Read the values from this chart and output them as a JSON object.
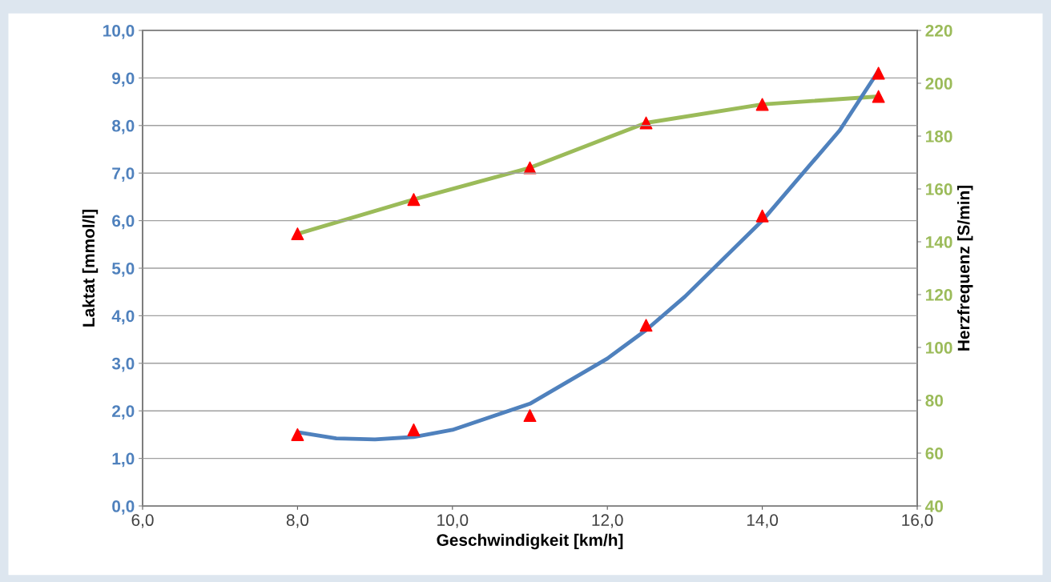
{
  "chart_data": {
    "type": "line",
    "xlabel": "Geschwindigkeit [km/h]",
    "ylabel": "Laktat [mmol/l]",
    "y2label": "Herzfrequenz [S/min]",
    "xlim": [
      6,
      16
    ],
    "xticks": [
      {
        "value": 6,
        "label": "6,0"
      },
      {
        "value": 8,
        "label": "8,0"
      },
      {
        "value": 10,
        "label": "10,0"
      },
      {
        "value": 12,
        "label": "12,0"
      },
      {
        "value": 14,
        "label": "14,0"
      },
      {
        "value": 16,
        "label": "16,0"
      }
    ],
    "ylim": [
      0,
      10
    ],
    "yticks": [
      {
        "value": 0,
        "label": "0,0"
      },
      {
        "value": 1,
        "label": "1,0"
      },
      {
        "value": 2,
        "label": "2,0"
      },
      {
        "value": 3,
        "label": "3,0"
      },
      {
        "value": 4,
        "label": "4,0"
      },
      {
        "value": 5,
        "label": "5,0"
      },
      {
        "value": 6,
        "label": "6,0"
      },
      {
        "value": 7,
        "label": "7,0"
      },
      {
        "value": 8,
        "label": "8,0"
      },
      {
        "value": 9,
        "label": "9,0"
      },
      {
        "value": 10,
        "label": "10,0"
      }
    ],
    "y2lim": [
      40,
      220
    ],
    "y2ticks": [
      40,
      60,
      80,
      100,
      120,
      140,
      160,
      180,
      200,
      220
    ],
    "grid": "y",
    "legend": false,
    "series": [
      {
        "axis": "y2",
        "color": "#9bbb59",
        "marker": "none",
        "x": [
          8.0,
          9.5,
          11.0,
          12.5,
          14.0,
          15.5
        ],
        "values": [
          143,
          156,
          168,
          185,
          192,
          195
        ]
      },
      {
        "axis": "y",
        "color": "#4f81bd",
        "marker": "none",
        "x": [
          8.0,
          8.5,
          9.0,
          9.5,
          10.0,
          11.0,
          12.0,
          12.5,
          13.0,
          14.0,
          15.0,
          15.5
        ],
        "values": [
          1.55,
          1.42,
          1.4,
          1.45,
          1.6,
          2.15,
          3.1,
          3.7,
          4.4,
          6.0,
          7.9,
          9.15
        ]
      },
      {
        "type": "scatter",
        "axis": "y2",
        "color": "#ff0000",
        "marker": "triangle",
        "x": [
          8.0,
          9.5,
          11.0,
          12.5,
          14.0,
          15.5
        ],
        "values": [
          143,
          156,
          168,
          185,
          192,
          195
        ]
      },
      {
        "type": "scatter",
        "axis": "y",
        "color": "#ff0000",
        "marker": "triangle",
        "x": [
          8.0,
          9.5,
          11.0,
          12.5,
          14.0,
          15.5
        ],
        "values": [
          1.5,
          1.6,
          1.9,
          3.8,
          6.1,
          9.1
        ]
      }
    ]
  }
}
